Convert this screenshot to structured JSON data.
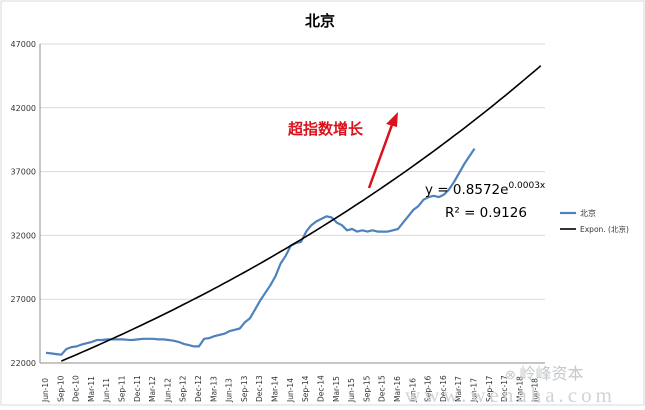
{
  "chart_data": {
    "type": "line",
    "title": "北京",
    "xlabel": "",
    "ylabel": "",
    "ylim": [
      22000,
      47000
    ],
    "yticks": [
      22000,
      27000,
      32000,
      37000,
      42000,
      47000
    ],
    "grid": true,
    "legend_position": "right",
    "x_tick_labels": [
      "Jun-10",
      "Sep-10",
      "Dec-10",
      "Mar-11",
      "Jun-11",
      "Sep-11",
      "Dec-11",
      "Mar-12",
      "Jun-12",
      "Sep-12",
      "Dec-12",
      "Mar-13",
      "Jun-13",
      "Sep-13",
      "Dec-13",
      "Mar-14",
      "Jun-14",
      "Sep-14",
      "Dec-14",
      "Mar-15",
      "Jun-15",
      "Sep-15",
      "Dec-15",
      "Mar-16",
      "Jun-16",
      "Sep-16",
      "Dec-16",
      "Mar-17",
      "Jun-17",
      "Sep-17",
      "Dec-17",
      "Mar-18",
      "Jun-18"
    ],
    "series": [
      {
        "name": "北京",
        "color": "#4f81bd",
        "values": [
          22800,
          22750,
          22700,
          22650,
          23100,
          23250,
          23300,
          23450,
          23550,
          23650,
          23800,
          23800,
          23850,
          23850,
          23850,
          23850,
          23820,
          23800,
          23850,
          23900,
          23900,
          23900,
          23850,
          23850,
          23800,
          23750,
          23650,
          23500,
          23400,
          23300,
          23300,
          23900,
          23950,
          24100,
          24200,
          24300,
          24500,
          24600,
          24700,
          25200,
          25500,
          26200,
          26900,
          27500,
          28100,
          28800,
          29800,
          30400,
          31200,
          31400,
          31500,
          32300,
          32800,
          33100,
          33300,
          33500,
          33400,
          33000,
          32800,
          32400,
          32500,
          32300,
          32400,
          32300,
          32400,
          32300,
          32300,
          32300,
          32400,
          32500,
          33000,
          33500,
          34000,
          34300,
          34800,
          35000,
          35100,
          35000,
          35200,
          35600,
          36200,
          36900,
          37600,
          38200,
          38800
        ]
      },
      {
        "name": "Expon. (北京)",
        "color": "#000000",
        "type": "trendline",
        "x_start": 0,
        "x_end": 97,
        "values_at_ends": [
          21650,
          45300
        ]
      }
    ],
    "equation": {
      "prefix": "y = 0.8572e",
      "exponent": "0.0003x",
      "r2": "R² = 0.9126"
    },
    "annotation": {
      "text": "超指数增长",
      "color": "#d9121b"
    }
  },
  "watermark": {
    "logo_text": "岭峰资本",
    "url_text": "www.wenaha.com"
  }
}
